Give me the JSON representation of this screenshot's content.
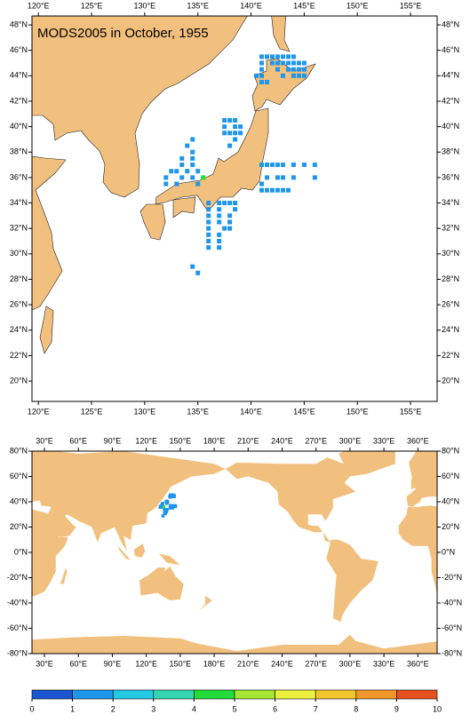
{
  "title": "MODS2005 in October, 1955",
  "regional_map": {
    "xlim": [
      119.4,
      157.5
    ],
    "ylim": [
      18.4,
      48.7
    ],
    "xticks": [
      {
        "value": 120,
        "label": "120°E"
      },
      {
        "value": 125,
        "label": "125°E"
      },
      {
        "value": 130,
        "label": "130°E"
      },
      {
        "value": 135,
        "label": "135°E"
      },
      {
        "value": 140,
        "label": "140°E"
      },
      {
        "value": 145,
        "label": "145°E"
      },
      {
        "value": 150,
        "label": "150°E"
      },
      {
        "value": 155,
        "label": "155°E"
      }
    ],
    "yticks": [
      {
        "value": 20,
        "label": "20°N"
      },
      {
        "value": 22,
        "label": "22°N"
      },
      {
        "value": 24,
        "label": "24°N"
      },
      {
        "value": 26,
        "label": "26°N"
      },
      {
        "value": 28,
        "label": "28°N"
      },
      {
        "value": 30,
        "label": "30°N"
      },
      {
        "value": 32,
        "label": "32°N"
      },
      {
        "value": 34,
        "label": "34°N"
      },
      {
        "value": 36,
        "label": "36°N"
      },
      {
        "value": 38,
        "label": "38°N"
      },
      {
        "value": 40,
        "label": "40°N"
      },
      {
        "value": 42,
        "label": "42°N"
      },
      {
        "value": 44,
        "label": "44°N"
      },
      {
        "value": 46,
        "label": "46°N"
      },
      {
        "value": 48,
        "label": "48°N"
      }
    ]
  },
  "global_map": {
    "xlim": [
      19,
      377
    ],
    "ylim": [
      -80,
      80
    ],
    "xticks": [
      {
        "value": 30,
        "label": "30°E"
      },
      {
        "value": 60,
        "label": "60°E"
      },
      {
        "value": 90,
        "label": "90°E"
      },
      {
        "value": 120,
        "label": "120°E"
      },
      {
        "value": 150,
        "label": "150°E"
      },
      {
        "value": 180,
        "label": "180°E"
      },
      {
        "value": 210,
        "label": "210°E"
      },
      {
        "value": 240,
        "label": "240°E"
      },
      {
        "value": 270,
        "label": "270°E"
      },
      {
        "value": 300,
        "label": "300°E"
      },
      {
        "value": 330,
        "label": "330°E"
      },
      {
        "value": 360,
        "label": "360°E"
      }
    ],
    "yticks": [
      {
        "value": -80,
        "label": "-80°N"
      },
      {
        "value": -60,
        "label": "-60°N"
      },
      {
        "value": -40,
        "label": "-40°N"
      },
      {
        "value": -20,
        "label": "-20°N"
      },
      {
        "value": 0,
        "label": "0°N"
      },
      {
        "value": 20,
        "label": "20°N"
      },
      {
        "value": 40,
        "label": "40°N"
      },
      {
        "value": 60,
        "label": "60°N"
      },
      {
        "value": 80,
        "label": "80°N"
      }
    ]
  },
  "observations": {
    "lon": [
      141,
      141.5,
      142,
      142.5,
      143,
      143.5,
      144,
      141,
      142,
      142.5,
      143,
      143.5,
      144,
      144.5,
      145,
      141,
      142.5,
      143.5,
      144,
      144.5,
      145,
      140.5,
      141,
      143,
      144,
      144.5,
      145,
      141,
      141.5,
      137.5,
      138,
      138.5,
      137.5,
      138.5,
      139,
      137.5,
      138,
      138.5,
      139,
      138.5,
      138,
      134.5,
      134,
      134.5,
      133.5,
      134.5,
      133.5,
      134.5,
      132.5,
      133,
      134,
      135,
      132,
      133.5,
      134.5,
      132,
      133,
      135,
      135.5,
      141,
      141.5,
      142,
      142.5,
      143,
      144,
      145,
      146,
      141.5,
      142.5,
      143,
      144,
      146,
      141,
      141,
      141.5,
      142,
      142.5,
      143,
      143.5,
      136,
      137,
      137.5,
      138,
      138.5,
      136,
      137,
      138.5,
      136,
      137,
      138,
      136,
      137,
      138,
      136,
      137.5,
      138,
      136,
      137,
      136,
      137,
      136,
      137,
      134.5,
      135
    ],
    "lat": [
      45.5,
      45.5,
      45.5,
      45.5,
      45.5,
      45.5,
      45.5,
      45,
      45,
      45,
      45,
      45,
      45,
      45,
      45,
      44.5,
      44.5,
      44.5,
      44.5,
      44.5,
      44.5,
      44,
      44,
      44,
      44,
      44,
      44,
      43.5,
      43.5,
      40.5,
      40.5,
      40.5,
      40,
      40,
      40,
      39.5,
      39.5,
      39.5,
      39.5,
      39,
      38.5,
      39,
      38.5,
      38,
      37.5,
      37.5,
      37,
      37,
      36.5,
      36.5,
      36.5,
      36.5,
      36,
      36,
      36,
      35.5,
      35.5,
      35.5,
      36,
      37,
      37,
      37,
      37,
      37,
      37,
      37,
      37,
      36,
      36,
      36,
      36,
      36,
      35.5,
      35,
      35,
      35,
      35,
      35,
      35,
      34,
      34,
      34,
      34,
      34,
      33.5,
      33.5,
      33.5,
      33,
      33,
      33,
      32.5,
      32.5,
      32.5,
      32,
      32,
      32,
      31.5,
      31.5,
      31,
      31,
      30.5,
      30.5,
      29,
      28.5
    ],
    "values": [
      1,
      1,
      1,
      1,
      1,
      1,
      1,
      1,
      1,
      1,
      1,
      1,
      1,
      1,
      1,
      1,
      1,
      1,
      1,
      1,
      1,
      1,
      1,
      1,
      1,
      1,
      1,
      1,
      1,
      1,
      1,
      1,
      1,
      1,
      1,
      1,
      1,
      1,
      1,
      1,
      1,
      1,
      1,
      1,
      1,
      1,
      1,
      1,
      1,
      1,
      1,
      1,
      1,
      1,
      1,
      1,
      1,
      1,
      4,
      1,
      1,
      1,
      1,
      1,
      1,
      1,
      1,
      1,
      1,
      1,
      1,
      1,
      1,
      1,
      1,
      1,
      1,
      1,
      1,
      1,
      1,
      1,
      1,
      1,
      1,
      1,
      1,
      1,
      1,
      1,
      1,
      1,
      1,
      1,
      1,
      1,
      1,
      1,
      1,
      1,
      1,
      1,
      1,
      1
    ]
  },
  "colorbar": {
    "ticks": [
      0,
      1,
      2,
      3,
      4,
      5,
      6,
      7,
      8,
      9,
      10
    ],
    "colors": [
      "#1a55d2",
      "#1e96ec",
      "#22c8e4",
      "#34d6b0",
      "#22dc3a",
      "#a4e632",
      "#ecf03c",
      "#f0c42a",
      "#f0962a",
      "#e6501e"
    ]
  }
}
